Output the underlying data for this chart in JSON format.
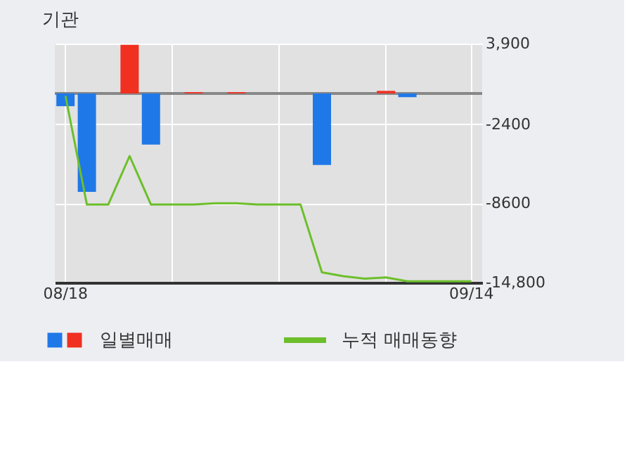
{
  "chart_data": {
    "type": "bar",
    "title": "기관",
    "categories": [
      "08/18",
      null,
      null,
      null,
      null,
      null,
      null,
      null,
      null,
      null,
      null,
      null,
      null,
      null,
      null,
      null,
      null,
      null,
      null,
      "09/14"
    ],
    "series": [
      {
        "name": "일별매매",
        "colors": [
          "#1f78e8",
          "#1f78e8",
          null,
          "#f03020",
          "#1f78e8",
          null,
          "#f03020",
          null,
          "#f03020",
          null,
          null,
          null,
          "#1f78e8",
          null,
          null,
          "#f03020",
          "#1f78e8",
          null,
          null,
          null
        ],
        "values": [
          -1000,
          -7700,
          null,
          3800,
          -4000,
          null,
          100,
          null,
          100,
          null,
          null,
          null,
          -5600,
          null,
          null,
          200,
          -300,
          null,
          null,
          null
        ]
      },
      {
        "name": "누적 매매동향",
        "type": "line",
        "color": "#6cbf2a",
        "values": [
          -200,
          -8700,
          -8700,
          -4900,
          -8700,
          -8700,
          -8700,
          -8600,
          -8600,
          -8700,
          -8700,
          -8700,
          -14000,
          -14300,
          -14500,
          -14400,
          -14700,
          -14700,
          -14700,
          -14700
        ]
      }
    ],
    "ylim": [
      -14800,
      3900
    ],
    "yticks": [
      {
        "value": 3900,
        "label": "3,900"
      },
      {
        "value": -2400,
        "label": "-2400"
      },
      {
        "value": -8600,
        "label": "-8600"
      },
      {
        "value": -14800,
        "label": "-14,800"
      }
    ],
    "ref_lines": [
      {
        "axis": "y",
        "value": 0,
        "color": "#888888"
      }
    ],
    "grid": true,
    "legend": "bottom"
  }
}
